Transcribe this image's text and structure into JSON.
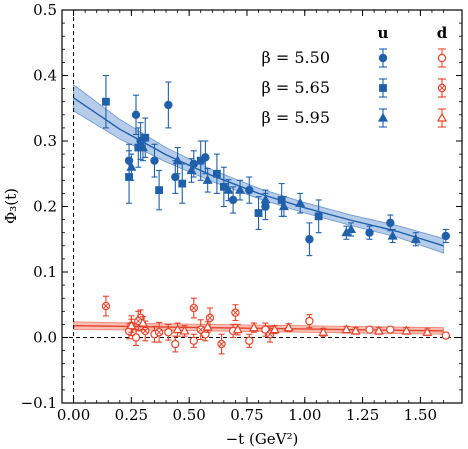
{
  "chart_data": {
    "type": "scatter",
    "title": "",
    "xlabel": "−t (GeV²)",
    "ylabel": "Φ₃(t)",
    "xlim": [
      -0.05,
      1.68
    ],
    "ylim": [
      -0.1,
      0.5
    ],
    "xticks": [
      "0.00",
      "0.25",
      "0.50",
      "0.75",
      "1.00",
      "1.25",
      "1.50"
    ],
    "yticks": [
      "−0.1",
      "0.0",
      "0.1",
      "0.2",
      "0.3",
      "0.4",
      "0.5"
    ],
    "grid": false,
    "legend": {
      "placement": "top-right",
      "column_headers": [
        "u",
        "d"
      ],
      "rows": [
        "β = 5.50",
        "β = 5.65",
        "β = 5.95"
      ]
    },
    "colors": {
      "u": "#2060aa",
      "d": "#e8422a",
      "u_band": "#a8c4e6",
      "d_band": "#f6b3a6"
    },
    "fits": [
      {
        "flavor": "u",
        "x": [
          0.0,
          0.2,
          0.4,
          0.6,
          0.8,
          1.0,
          1.2,
          1.4,
          1.6
        ],
        "y": [
          0.366,
          0.318,
          0.279,
          0.247,
          0.22,
          0.198,
          0.179,
          0.162,
          0.14
        ],
        "band": [
          0.02,
          0.015,
          0.011,
          0.009,
          0.008,
          0.008,
          0.008,
          0.009,
          0.011
        ]
      },
      {
        "flavor": "d",
        "x": [
          0.0,
          0.4,
          0.8,
          1.2,
          1.6
        ],
        "y": [
          0.018,
          0.016,
          0.014,
          0.012,
          0.01
        ],
        "band": [
          0.006,
          0.005,
          0.005,
          0.005,
          0.005
        ]
      }
    ],
    "series": [
      {
        "name": "u β = 5.50",
        "flavor": "u",
        "marker": "circle",
        "x": [
          0.24,
          0.27,
          0.29,
          0.35,
          0.41,
          0.44,
          0.52,
          0.57,
          0.69,
          0.76,
          0.83,
          1.02,
          1.28,
          1.37,
          1.61
        ],
        "y": [
          0.27,
          0.34,
          0.3,
          0.27,
          0.355,
          0.245,
          0.265,
          0.275,
          0.21,
          0.225,
          0.2,
          0.15,
          0.16,
          0.175,
          0.155
        ],
        "err": [
          0.025,
          0.03,
          0.028,
          0.025,
          0.035,
          0.025,
          0.02,
          0.025,
          0.02,
          0.02,
          0.02,
          0.025,
          0.01,
          0.012,
          0.01
        ]
      },
      {
        "name": "u β = 5.65",
        "flavor": "u",
        "marker": "square",
        "x": [
          0.14,
          0.24,
          0.28,
          0.31,
          0.37,
          0.47,
          0.55,
          0.62,
          0.65,
          0.8,
          0.9,
          1.06
        ],
        "y": [
          0.36,
          0.245,
          0.29,
          0.305,
          0.225,
          0.235,
          0.27,
          0.25,
          0.23,
          0.19,
          0.21,
          0.185
        ],
        "err": [
          0.04,
          0.04,
          0.03,
          0.03,
          0.03,
          0.03,
          0.03,
          0.03,
          0.03,
          0.025,
          0.025,
          0.025
        ]
      },
      {
        "name": "u β = 5.95",
        "flavor": "u",
        "marker": "triangle",
        "x": [
          0.25,
          0.3,
          0.45,
          0.51,
          0.58,
          0.67,
          0.72,
          0.83,
          0.91,
          0.98,
          1.18,
          1.2,
          1.38,
          1.48
        ],
        "y": [
          0.26,
          0.29,
          0.27,
          0.255,
          0.24,
          0.225,
          0.225,
          0.21,
          0.2,
          0.205,
          0.16,
          0.165,
          0.155,
          0.15
        ],
        "err": [
          0.02,
          0.02,
          0.02,
          0.018,
          0.018,
          0.016,
          0.015,
          0.015,
          0.015,
          0.015,
          0.01,
          0.01,
          0.01,
          0.01
        ]
      },
      {
        "name": "d β = 5.50",
        "flavor": "d",
        "marker": "circle",
        "x": [
          0.24,
          0.27,
          0.29,
          0.35,
          0.41,
          0.44,
          0.52,
          0.57,
          0.69,
          0.76,
          0.83,
          1.02,
          1.28,
          1.37,
          1.61
        ],
        "y": [
          0.01,
          0.0,
          0.03,
          0.005,
          0.008,
          -0.01,
          -0.005,
          0.005,
          0.01,
          -0.005,
          0.012,
          0.025,
          0.012,
          0.012,
          0.003
        ],
        "err": [
          0.012,
          0.012,
          0.012,
          0.012,
          0.012,
          0.012,
          0.01,
          0.01,
          0.01,
          0.01,
          0.01,
          0.01,
          0.004,
          0.004,
          0.004
        ]
      },
      {
        "name": "d β = 5.65",
        "flavor": "d",
        "marker": "square",
        "x": [
          0.14,
          0.25,
          0.28,
          0.31,
          0.37,
          0.52,
          0.55,
          0.59,
          0.64,
          0.7,
          0.85
        ],
        "y": [
          0.048,
          0.018,
          0.025,
          0.01,
          0.008,
          0.045,
          0.012,
          0.03,
          -0.01,
          0.038,
          0.005
        ],
        "err": [
          0.015,
          0.015,
          0.015,
          0.015,
          0.015,
          0.015,
          0.015,
          0.015,
          0.015,
          0.012,
          0.012
        ]
      },
      {
        "name": "d β = 5.95",
        "flavor": "d",
        "marker": "triangle",
        "x": [
          0.25,
          0.3,
          0.45,
          0.48,
          0.58,
          0.71,
          0.78,
          0.87,
          0.93,
          1.08,
          1.18,
          1.22,
          1.32,
          1.44,
          1.53
        ],
        "y": [
          0.018,
          0.022,
          0.012,
          0.01,
          0.016,
          0.012,
          0.015,
          0.012,
          0.015,
          0.008,
          0.012,
          0.01,
          0.01,
          0.01,
          0.008
        ],
        "err": [
          0.01,
          0.01,
          0.01,
          0.008,
          0.008,
          0.008,
          0.007,
          0.006,
          0.006,
          0.006,
          0.005,
          0.005,
          0.005,
          0.005,
          0.005
        ]
      }
    ]
  }
}
